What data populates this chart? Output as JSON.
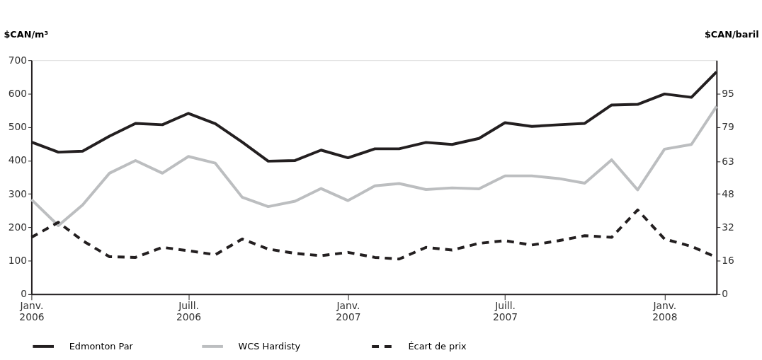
{
  "chart_data": {
    "type": "line",
    "ylabel": "$CAN/m³",
    "y2label": "$CAN/baril",
    "x": [
      "2006-01",
      "2006-02",
      "2006-03",
      "2006-04",
      "2006-05",
      "2006-06",
      "2006-07",
      "2006-08",
      "2006-09",
      "2006-10",
      "2006-11",
      "2006-12",
      "2007-01",
      "2007-02",
      "2007-03",
      "2007-04",
      "2007-05",
      "2007-06",
      "2007-07",
      "2007-08",
      "2007-09",
      "2007-10",
      "2007-11",
      "2007-12",
      "2008-01",
      "2008-02",
      "2008-03"
    ],
    "series": [
      {
        "name": "Edmonton Par",
        "color": "#231f20",
        "line_style": "solid",
        "values": [
          455,
          425,
          428,
          473,
          511,
          507,
          541,
          510,
          455,
          398,
          400,
          431,
          408,
          435,
          435,
          454,
          448,
          466,
          513,
          502,
          507,
          511,
          566,
          568,
          599,
          589,
          665
        ]
      },
      {
        "name": "WCS  Hardisty",
        "color": "#bcbec0",
        "line_style": "solid",
        "values": [
          283,
          205,
          267,
          362,
          400,
          362,
          412,
          392,
          290,
          262,
          278,
          316,
          280,
          324,
          331,
          313,
          318,
          315,
          354,
          354,
          346,
          332,
          402,
          312,
          434,
          448,
          562
        ]
      },
      {
        "name": "Écart de prix",
        "color": "#231f20",
        "line_style": "dashed",
        "values": [
          170,
          215,
          160,
          112,
          110,
          140,
          130,
          118,
          165,
          135,
          122,
          115,
          125,
          110,
          105,
          140,
          132,
          152,
          160,
          147,
          160,
          175,
          170,
          252,
          165,
          143,
          110
        ]
      }
    ],
    "xlim": [
      "2006-01",
      "2008-03"
    ],
    "xticks": [
      {
        "value": "2006-01",
        "label": "Janv. 2006"
      },
      {
        "value": "2006-07",
        "label": "Juill. 2006"
      },
      {
        "value": "2007-01",
        "label": "Janv. 2007"
      },
      {
        "value": "2007-07",
        "label": "Juill. 2007"
      },
      {
        "value": "2008-01",
        "label": "Janv. 2008"
      }
    ],
    "ylim": [
      0,
      700
    ],
    "yticks": [
      0,
      100,
      200,
      300,
      400,
      500,
      600,
      700
    ],
    "y2lim": [
      0,
      111.3
    ],
    "y2ticks": [
      0,
      {
        "value": 15.9,
        "label": "16"
      },
      {
        "value": 31.8,
        "label": "32"
      },
      {
        "value": 47.7,
        "label": "48"
      },
      63,
      {
        "value": 79.5,
        "label": "79"
      },
      {
        "value": 95.4,
        "label": "95"
      }
    ],
    "grid": false,
    "legend": "bottom"
  }
}
